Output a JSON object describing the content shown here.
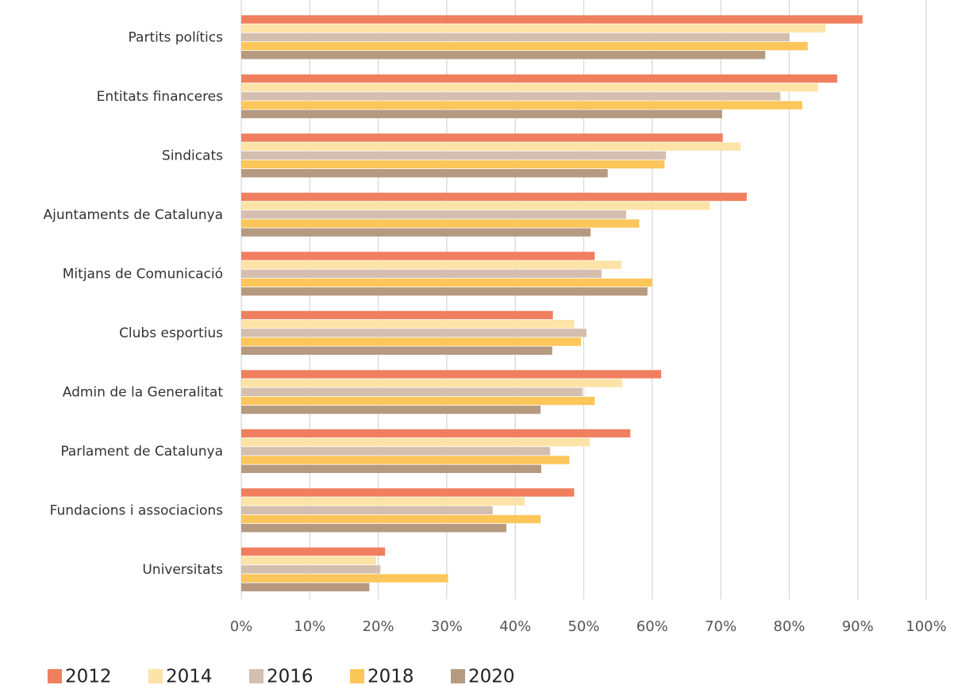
{
  "chart_data": {
    "type": "bar",
    "orientation": "horizontal",
    "categories": [
      "Partits polítics",
      "Entitats financeres",
      "Sindicats",
      "Ajuntaments de Catalunya",
      "Mitjans de Comunicació",
      "Clubs esportius",
      "Admin de la Generalitat",
      "Parlament de Catalunya",
      "Fundacions i associacions",
      "Universitats"
    ],
    "series": [
      {
        "name": "2012",
        "color": "#f07f5f",
        "values": [
          90.7,
          87.0,
          70.3,
          73.8,
          51.6,
          45.5,
          61.3,
          56.8,
          48.6,
          21.0
        ]
      },
      {
        "name": "2014",
        "color": "#fde3a7",
        "values": [
          85.3,
          84.2,
          72.9,
          68.4,
          55.5,
          48.6,
          55.6,
          50.9,
          41.4,
          19.7
        ]
      },
      {
        "name": "2016",
        "color": "#d4beaf",
        "values": [
          80.0,
          78.7,
          62.0,
          56.2,
          52.6,
          50.4,
          49.8,
          45.1,
          36.7,
          20.3
        ]
      },
      {
        "name": "2018",
        "color": "#fcc65a",
        "values": [
          82.7,
          81.9,
          61.8,
          58.1,
          60.0,
          49.6,
          51.6,
          47.9,
          43.7,
          30.2
        ]
      },
      {
        "name": "2020",
        "color": "#b59a80",
        "values": [
          76.5,
          70.2,
          53.5,
          51.0,
          59.3,
          45.4,
          43.7,
          43.8,
          38.7,
          18.7
        ]
      }
    ],
    "xlim": [
      0,
      100
    ],
    "xticks": [
      {
        "value": 0,
        "label": "0%"
      },
      {
        "value": 10,
        "label": "10%"
      },
      {
        "value": 20,
        "label": "20%"
      },
      {
        "value": 30,
        "label": "30%"
      },
      {
        "value": 40,
        "label": "40%"
      },
      {
        "value": 50,
        "label": "50%"
      },
      {
        "value": 60,
        "label": "60%"
      },
      {
        "value": 70,
        "label": "70%"
      },
      {
        "value": 80,
        "label": "80%"
      },
      {
        "value": 90,
        "label": "90%"
      },
      {
        "value": 100,
        "label": "100%"
      }
    ],
    "grid": true,
    "legend": "bottom-left"
  }
}
